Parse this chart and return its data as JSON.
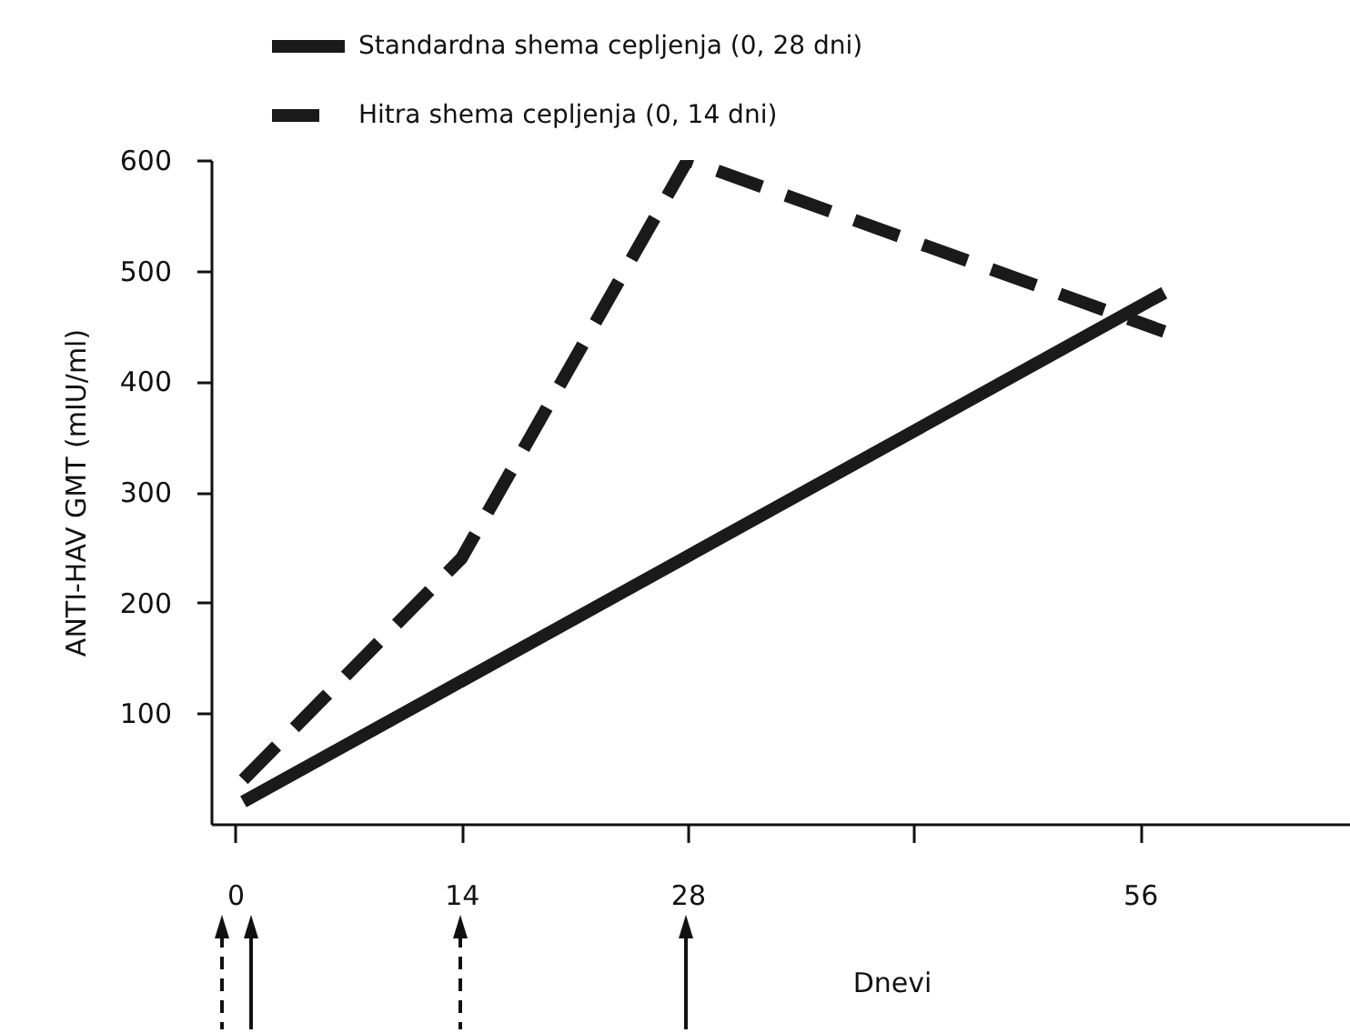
{
  "chart_data": {
    "type": "line",
    "xlabel": "Dnevi",
    "ylabel": "ANTI-HAV GMT (mIU/ml)",
    "xlim": [
      -1.5,
      69
    ],
    "xticks": [
      0,
      14,
      28,
      {
        "value": 42,
        "label": null
      },
      56
    ],
    "ylim": [
      0,
      600
    ],
    "yticks": [
      100,
      200,
      300,
      400,
      500,
      600
    ],
    "grid": false,
    "legend": "top",
    "marker": "none",
    "series": [
      {
        "name": "Standardna shema cepljenja (0, 28 dni)",
        "color": "#1a1a1a",
        "line_style": "solid",
        "x": [
          0.5,
          57.5
        ],
        "values": [
          20,
          480
        ]
      },
      {
        "name": "Hitra shema cepljenja (0, 14 dni)",
        "color": "#1a1a1a",
        "line_style": "dashed",
        "x": [
          0.5,
          14,
          28,
          57.5
        ],
        "values": [
          40,
          240,
          600,
          445
        ]
      }
    ]
  }
}
